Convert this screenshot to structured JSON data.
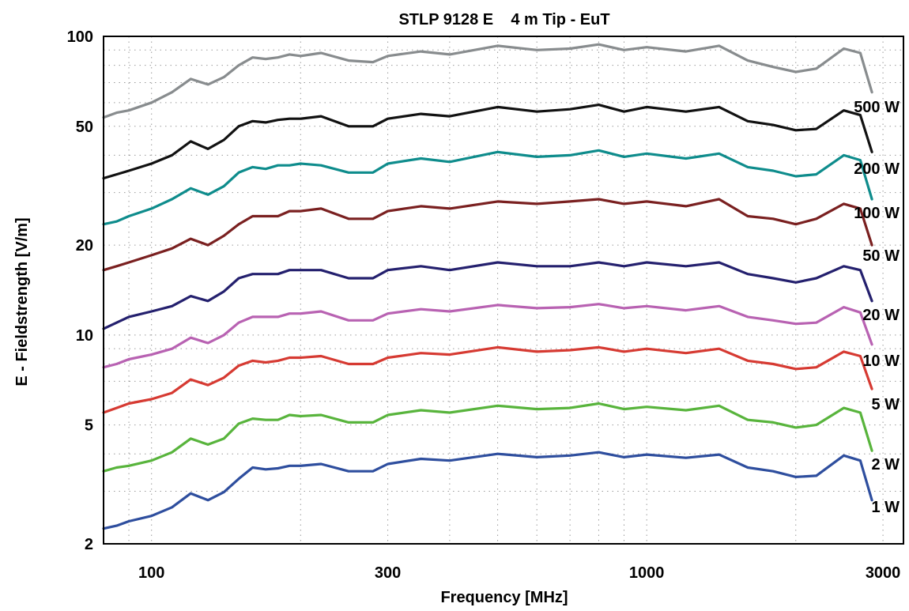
{
  "chart_data": {
    "type": "line",
    "title": "STLP 9128 E    4 m Tip - EuT",
    "xlabel": "Frequency [MHz]",
    "ylabel": "E - Fieldstrength [V/m]",
    "x_scale": "log",
    "y_scale": "log",
    "xlim": [
      80,
      3300
    ],
    "ylim": [
      2,
      100
    ],
    "x_ticks": [
      100,
      300,
      1000,
      3000
    ],
    "x_tick_labels": [
      "100",
      "300",
      "1000",
      "3000"
    ],
    "y_ticks": [
      2,
      5,
      10,
      20,
      50,
      100
    ],
    "y_tick_labels": [
      "2",
      "5",
      "10",
      "20",
      "50",
      "100"
    ],
    "grid": true,
    "x": [
      80,
      85,
      90,
      100,
      110,
      120,
      130,
      140,
      150,
      160,
      170,
      180,
      190,
      200,
      220,
      250,
      280,
      300,
      350,
      400,
      500,
      600,
      700,
      800,
      900,
      1000,
      1200,
      1400,
      1600,
      1800,
      2000,
      2200,
      2500,
      2700,
      2850
    ],
    "series": [
      {
        "name": "500 W",
        "color": "#888c8e",
        "values": [
          53.5,
          55.5,
          56.5,
          60,
          65,
          72,
          69,
          73,
          80,
          85,
          84,
          85,
          87,
          86,
          88,
          83,
          82,
          86,
          89,
          87,
          93,
          90,
          91,
          94,
          90,
          92,
          89,
          93,
          83,
          79,
          76,
          78,
          91,
          88,
          65
        ]
      },
      {
        "name": "200 W",
        "color": "#111111",
        "values": [
          33.5,
          34.5,
          35.5,
          37.5,
          40,
          44.5,
          42,
          45,
          50,
          52,
          51.5,
          52.5,
          53,
          53,
          54,
          50,
          50,
          53,
          55,
          54,
          58,
          56,
          57,
          59,
          56,
          58,
          56,
          58,
          52,
          50.5,
          48.5,
          49,
          56.5,
          54.5,
          41
        ]
      },
      {
        "name": "100 W",
        "color": "#0e8c8c",
        "values": [
          23.5,
          24,
          25,
          26.5,
          28.5,
          31,
          29.5,
          31.5,
          35,
          36.5,
          36,
          37,
          37,
          37.5,
          37,
          35,
          35,
          37.5,
          39,
          38,
          41,
          39.5,
          40,
          41.5,
          39.5,
          40.5,
          39,
          40.5,
          36.5,
          35.5,
          34,
          34.5,
          40,
          38.5,
          28.5
        ]
      },
      {
        "name": "50 W",
        "color": "#7a2020",
        "values": [
          16.5,
          17,
          17.5,
          18.5,
          19.5,
          21,
          20,
          21.5,
          23.5,
          25,
          25,
          25,
          26,
          26,
          26.5,
          24.5,
          24.5,
          26,
          27,
          26.5,
          28,
          27.5,
          28,
          28.5,
          27.5,
          28,
          27,
          28.5,
          25,
          24.5,
          23.5,
          24.5,
          27.5,
          26.5,
          20
        ]
      },
      {
        "name": "20 W",
        "color": "#24206e",
        "values": [
          10.5,
          11,
          11.5,
          12,
          12.5,
          13.5,
          13,
          14,
          15.5,
          16,
          16,
          16,
          16.5,
          16.5,
          16.5,
          15.5,
          15.5,
          16.5,
          17,
          16.5,
          17.5,
          17,
          17,
          17.5,
          17,
          17.5,
          17,
          17.5,
          16,
          15.5,
          15,
          15.5,
          17,
          16.5,
          13
        ]
      },
      {
        "name": "10 W",
        "color": "#b862b2",
        "values": [
          7.8,
          8,
          8.3,
          8.6,
          9,
          9.8,
          9.4,
          10,
          11,
          11.5,
          11.5,
          11.5,
          11.8,
          11.8,
          12,
          11.2,
          11.2,
          11.8,
          12.2,
          12,
          12.6,
          12.3,
          12.4,
          12.7,
          12.3,
          12.5,
          12.1,
          12.5,
          11.5,
          11.2,
          10.9,
          11,
          12.4,
          11.9,
          9.3
        ]
      },
      {
        "name": "5 W",
        "color": "#d63a32",
        "values": [
          5.5,
          5.7,
          5.9,
          6.1,
          6.4,
          7.1,
          6.8,
          7.2,
          7.9,
          8.2,
          8.1,
          8.2,
          8.4,
          8.4,
          8.5,
          8,
          8,
          8.4,
          8.7,
          8.6,
          9.1,
          8.8,
          8.9,
          9.1,
          8.8,
          9,
          8.7,
          9,
          8.2,
          8,
          7.7,
          7.8,
          8.8,
          8.5,
          6.6
        ]
      },
      {
        "name": "2 W",
        "color": "#58b43c",
        "values": [
          3.5,
          3.6,
          3.65,
          3.8,
          4.05,
          4.5,
          4.3,
          4.5,
          5.05,
          5.25,
          5.2,
          5.2,
          5.4,
          5.35,
          5.4,
          5.1,
          5.1,
          5.4,
          5.6,
          5.5,
          5.8,
          5.65,
          5.7,
          5.9,
          5.65,
          5.75,
          5.6,
          5.8,
          5.2,
          5.1,
          4.9,
          5,
          5.7,
          5.5,
          4.1
        ]
      },
      {
        "name": "1 W",
        "color": "#2e4e9e",
        "values": [
          2.25,
          2.3,
          2.38,
          2.48,
          2.65,
          2.95,
          2.8,
          2.98,
          3.3,
          3.6,
          3.55,
          3.58,
          3.65,
          3.65,
          3.7,
          3.5,
          3.5,
          3.7,
          3.85,
          3.8,
          4.0,
          3.9,
          3.95,
          4.05,
          3.9,
          3.98,
          3.88,
          3.98,
          3.6,
          3.5,
          3.35,
          3.38,
          3.95,
          3.8,
          2.8
        ]
      }
    ]
  }
}
